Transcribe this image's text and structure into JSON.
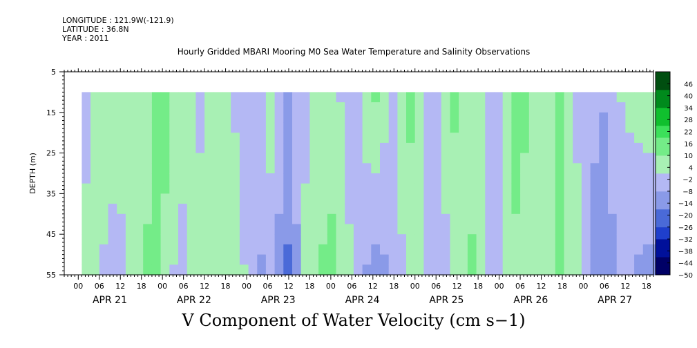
{
  "header": {
    "longitude": "LONGITUDE : 121.9W(-121.9)",
    "latitude": "LATITUDE : 36.8N",
    "year": "YEAR : 2011"
  },
  "title": "Hourly Gridded MBARI Mooring M0 Sea Water Temperature and Salinity Observations",
  "subtitle": "V Component of Water Velocity (cm s−1)",
  "chart_data": {
    "type": "heatmap",
    "title": "Hourly Gridded MBARI Mooring M0 Sea Water Temperature and Salinity Observations",
    "xlabel": "",
    "ylabel": "DEPTH (m)",
    "zlabel": "V Component of Water Velocity (cm s−1)",
    "y_ticks": [
      5,
      15,
      25,
      35,
      45,
      55
    ],
    "y_range": [
      5,
      55
    ],
    "y_inverted": true,
    "data_depth_range": [
      10,
      55
    ],
    "x_range_hours": [
      -4,
      164
    ],
    "data_start_hour": 1,
    "hour_ticks": [
      "00",
      "06",
      "12",
      "18",
      "00",
      "06",
      "12",
      "18",
      "00",
      "06",
      "12",
      "18",
      "00",
      "06",
      "12",
      "18",
      "00",
      "06",
      "12",
      "18",
      "00",
      "06",
      "12",
      "18",
      "00",
      "06",
      "12",
      "18"
    ],
    "day_labels": [
      "APR 21",
      "APR 22",
      "APR 23",
      "APR 24",
      "APR 25",
      "APR 26",
      "APR 27"
    ],
    "colorbar": {
      "levels": [
        -50,
        -44,
        -38,
        -32,
        -26,
        -20,
        -14,
        -8,
        -2,
        4,
        10,
        16,
        22,
        28,
        34,
        40,
        46
      ],
      "interval": 3,
      "min": -50,
      "max": 52
    },
    "column_profiles": [
      {
        "hour": 1,
        "top": -4,
        "bottom": 4
      },
      {
        "hour": 6,
        "top": 6,
        "bottom": 2
      },
      {
        "hour": 11,
        "top": 10,
        "bottom": -6
      },
      {
        "hour": 17,
        "top": 4,
        "bottom": 8
      },
      {
        "hour": 23,
        "top": 14,
        "bottom": 12
      },
      {
        "hour": 29,
        "top": 8,
        "bottom": -4
      },
      {
        "hour": 35,
        "top": -2,
        "bottom": 6
      },
      {
        "hour": 41,
        "top": 10,
        "bottom": 10
      },
      {
        "hour": 47,
        "top": -6,
        "bottom": 2
      },
      {
        "hour": 51,
        "top": -8,
        "bottom": -10
      },
      {
        "hour": 55,
        "top": 6,
        "bottom": -4
      },
      {
        "hour": 60,
        "top": -10,
        "bottom": -18
      },
      {
        "hour": 66,
        "top": 2,
        "bottom": 8
      },
      {
        "hour": 72,
        "top": 6,
        "bottom": 12
      },
      {
        "hour": 78,
        "top": -6,
        "bottom": 2
      },
      {
        "hour": 84,
        "top": 12,
        "bottom": -12
      },
      {
        "hour": 90,
        "top": -2,
        "bottom": -6
      },
      {
        "hour": 96,
        "top": 14,
        "bottom": 10
      },
      {
        "hour": 101,
        "top": -4,
        "bottom": -8
      },
      {
        "hour": 107,
        "top": 12,
        "bottom": 2
      },
      {
        "hour": 113,
        "top": 4,
        "bottom": 12
      },
      {
        "hour": 119,
        "top": -6,
        "bottom": -4
      },
      {
        "hour": 125,
        "top": 14,
        "bottom": 8
      },
      {
        "hour": 131,
        "top": 6,
        "bottom": 4
      },
      {
        "hour": 137,
        "top": 10,
        "bottom": 12
      },
      {
        "hour": 143,
        "top": -2,
        "bottom": 2
      },
      {
        "hour": 149,
        "top": -8,
        "bottom": -14
      },
      {
        "hour": 155,
        "top": 2,
        "bottom": -6
      },
      {
        "hour": 161,
        "top": 6,
        "bottom": -10
      }
    ]
  },
  "colors": {
    "colormap": [
      "#000066",
      "#00109a",
      "#1f3fcc",
      "#4a6ad8",
      "#8a9ae8",
      "#b4b8f4",
      "#a8f0b4",
      "#74ec88",
      "#3ce05a",
      "#10c02e",
      "#008a1c",
      "#004e10"
    ]
  }
}
